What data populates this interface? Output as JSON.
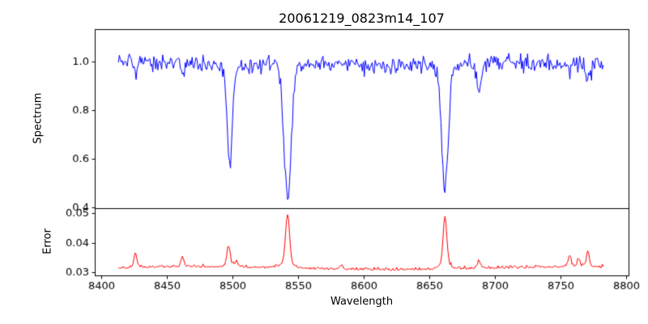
{
  "figure": {
    "title": "20061219_0823m14_107",
    "xlabel": "Wavelength",
    "ylabel_top": "Spectrum",
    "ylabel_bottom": "Error",
    "background": "#ffffff"
  },
  "chart_data": {
    "type": "line",
    "title": "20061219_0823m14_107",
    "xlabel": "Wavelength",
    "xlim": [
      8395,
      8802
    ],
    "xticks": {
      "values": [
        8400,
        8450,
        8500,
        8550,
        8600,
        8650,
        8700,
        8750,
        8800
      ],
      "labels": [
        "8400",
        "8450",
        "8500",
        "8550",
        "8600",
        "8650",
        "8700",
        "8750",
        "8800"
      ]
    },
    "x_data_range": [
      8413,
      8783
    ],
    "x_step": 0.75,
    "noise_seed": 1219,
    "panels": [
      {
        "name": "spectrum",
        "ylabel": "Spectrum",
        "color": "#0000ff",
        "ylim": [
          0.398,
          1.132
        ],
        "yticks": {
          "values": [
            0.4,
            0.6,
            0.8,
            1.0
          ],
          "labels": [
            "0.4",
            "0.6",
            "0.8",
            "1.0"
          ]
        },
        "continuum": 0.988,
        "noise_sigma": 0.017,
        "absorption_lines": [
          {
            "center": 8426.0,
            "depth": 0.065,
            "sigma": 1.1,
            "min_flux": 0.92
          },
          {
            "center": 8462.0,
            "depth": 0.055,
            "sigma": 1.0,
            "min_flux": 0.93
          },
          {
            "center": 8498.0,
            "depth": 0.39,
            "sigma": 2.0,
            "min_flux": 0.6
          },
          {
            "center": 8542.0,
            "depth": 0.55,
            "sigma": 2.8,
            "min_flux": 0.44
          },
          {
            "center": 8662.0,
            "depth": 0.52,
            "sigma": 2.5,
            "min_flux": 0.47
          },
          {
            "center": 8688.0,
            "depth": 0.12,
            "sigma": 1.6,
            "min_flux": 0.87
          },
          {
            "center": 8757.0,
            "depth": 0.04,
            "sigma": 1.0,
            "min_flux": 0.95
          },
          {
            "center": 8771.0,
            "depth": 0.075,
            "sigma": 1.2,
            "min_flux": 0.91
          }
        ]
      },
      {
        "name": "error",
        "ylabel": "Error",
        "color": "#ff0000",
        "ylim": [
          0.0288,
          0.0518
        ],
        "yticks": {
          "values": [
            0.03,
            0.04,
            0.05
          ],
          "labels": [
            "0.03",
            "0.04",
            "0.05"
          ]
        },
        "baseline": 0.031,
        "noise_sigma": 0.00045,
        "peaks": [
          {
            "center": 8426,
            "amp": 0.0046,
            "sigma": 1.0
          },
          {
            "center": 8462,
            "amp": 0.0031,
            "sigma": 1.0
          },
          {
            "center": 8497,
            "amp": 0.0064,
            "sigma": 1.2
          },
          {
            "center": 8503,
            "amp": 0.0016,
            "sigma": 1.0
          },
          {
            "center": 8542,
            "amp": 0.0165,
            "sigma": 1.5
          },
          {
            "center": 8583,
            "amp": 0.0012,
            "sigma": 1.2
          },
          {
            "center": 8662,
            "amp": 0.016,
            "sigma": 1.4
          },
          {
            "center": 8688,
            "amp": 0.0023,
            "sigma": 1.2
          },
          {
            "center": 8757,
            "amp": 0.0036,
            "sigma": 1.0
          },
          {
            "center": 8764,
            "amp": 0.0025,
            "sigma": 0.9
          },
          {
            "center": 8771,
            "amp": 0.0049,
            "sigma": 1.0
          }
        ]
      }
    ]
  }
}
